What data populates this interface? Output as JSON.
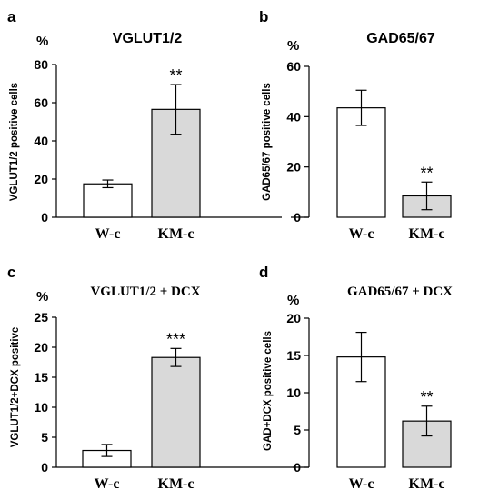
{
  "colors": {
    "axis": "#000000",
    "bar_w": "#ffffff",
    "bar_km": "#d9d9d9",
    "stroke": "#000000"
  },
  "chart_data": [
    {
      "type": "bar",
      "panel_letter": "a",
      "title": "VGLUT1/2",
      "unit": "%",
      "ylabel": "VGLUT1/2 positive cells",
      "ylim": [
        0,
        80
      ],
      "yticks": [
        0,
        20,
        40,
        60,
        80
      ],
      "categories": [
        "W-c",
        "KM-c"
      ],
      "values": [
        17.5,
        56.5
      ],
      "errors": [
        2,
        13
      ],
      "significance": [
        "",
        "**"
      ]
    },
    {
      "type": "bar",
      "panel_letter": "b",
      "title": "GAD65/67",
      "unit": "%",
      "ylabel": "GAD65/67 positive cells",
      "ylim": [
        0,
        60
      ],
      "yticks": [
        0,
        20,
        40,
        60
      ],
      "categories": [
        "W-c",
        "KM-c"
      ],
      "values": [
        43.5,
        8.5
      ],
      "errors": [
        7,
        5.5
      ],
      "significance": [
        "",
        "**"
      ]
    },
    {
      "type": "bar",
      "panel_letter": "c",
      "title": "VGLUT1/2 + DCX",
      "unit": "%",
      "ylabel": "VGLUT1/2+DCX positive",
      "ylim": [
        0,
        25
      ],
      "yticks": [
        0,
        5,
        10,
        15,
        20,
        25
      ],
      "categories": [
        "W-c",
        "KM-c"
      ],
      "values": [
        2.8,
        18.3
      ],
      "errors": [
        1,
        1.5
      ],
      "significance": [
        "",
        "***"
      ]
    },
    {
      "type": "bar",
      "panel_letter": "d",
      "title": "GAD65/67 + DCX",
      "unit": "%",
      "ylabel": "GAD+DCX positive cells",
      "ylim": [
        0,
        20
      ],
      "yticks": [
        0,
        5,
        10,
        15,
        20
      ],
      "categories": [
        "W-c",
        "KM-c"
      ],
      "values": [
        14.8,
        6.2
      ],
      "errors": [
        3.3,
        2
      ],
      "significance": [
        "",
        "**"
      ]
    }
  ]
}
